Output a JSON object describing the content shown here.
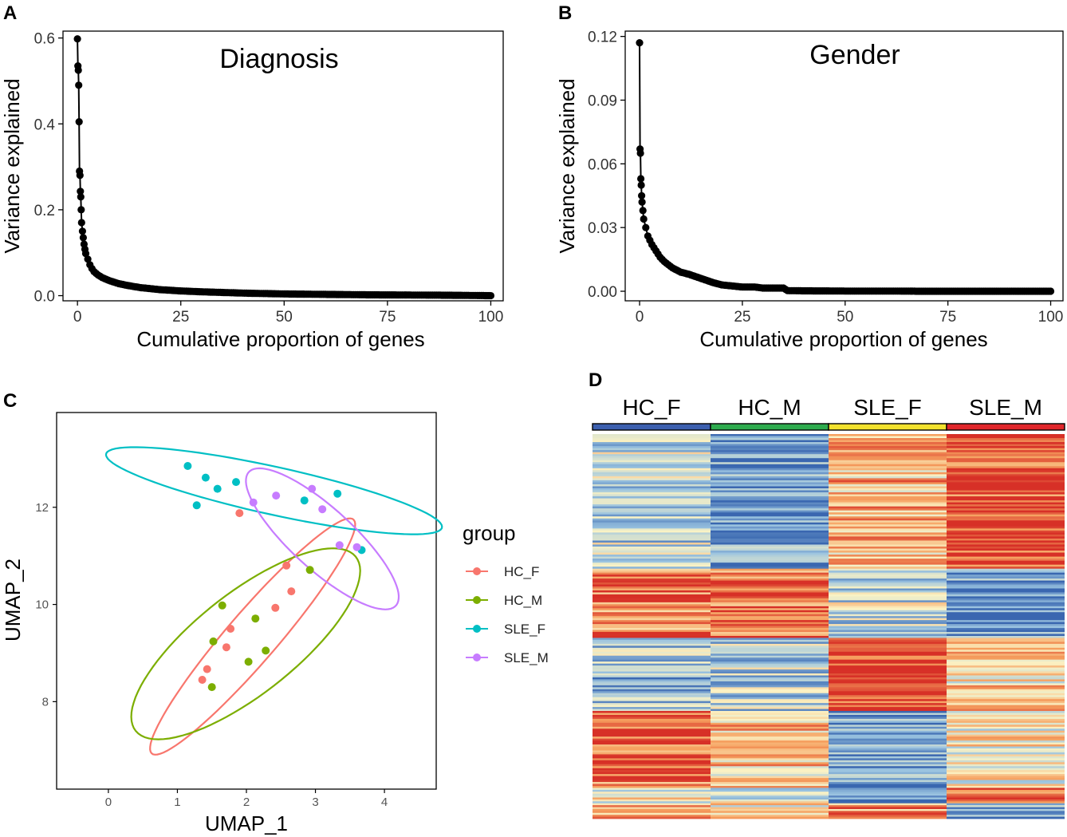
{
  "panels": {
    "a": {
      "letter": "A"
    },
    "b": {
      "letter": "B"
    },
    "c": {
      "letter": "C"
    },
    "d": {
      "letter": "D"
    }
  },
  "chart_data": [
    {
      "id": "A",
      "type": "line",
      "title": "Diagnosis",
      "xlabel": "Cumulative proportion of genes",
      "ylabel": "Variance explained",
      "xlim": [
        -3.5,
        103
      ],
      "ylim": [
        -0.012,
        0.616
      ],
      "xticks": [
        0,
        25,
        50,
        75,
        100
      ],
      "xtick_labels": [
        "0",
        "25",
        "50",
        "75",
        "100"
      ],
      "yticks": [
        0.0,
        0.2,
        0.4,
        0.6
      ],
      "ytick_labels": [
        "0.0",
        "0.2",
        "0.4",
        "0.6"
      ],
      "x": [
        0,
        0.1,
        0.2,
        0.3,
        0.4,
        0.5,
        0.6,
        0.7,
        0.8,
        0.9,
        1.0,
        1.2,
        1.4,
        1.6,
        1.8,
        2.0,
        2.5,
        3.0,
        3.5,
        4.0,
        5,
        6,
        7,
        8,
        10,
        12,
        15,
        20,
        25,
        30,
        40,
        50,
        60,
        70,
        80,
        90,
        100
      ],
      "y": [
        0.598,
        0.535,
        0.525,
        0.49,
        0.405,
        0.29,
        0.28,
        0.243,
        0.23,
        0.2,
        0.17,
        0.15,
        0.135,
        0.12,
        0.108,
        0.098,
        0.085,
        0.072,
        0.063,
        0.056,
        0.048,
        0.042,
        0.038,
        0.034,
        0.028,
        0.024,
        0.019,
        0.014,
        0.011,
        0.009,
        0.006,
        0.004,
        0.003,
        0.002,
        0.0015,
        0.001,
        0.0
      ]
    },
    {
      "id": "B",
      "type": "line",
      "title": "Gender",
      "xlabel": "Cumulative proportion of genes",
      "ylabel": "Variance explained",
      "xlim": [
        -3.5,
        103
      ],
      "ylim": [
        -0.0045,
        0.1225
      ],
      "xticks": [
        0,
        25,
        50,
        75,
        100
      ],
      "xtick_labels": [
        "0",
        "25",
        "50",
        "75",
        "100"
      ],
      "yticks": [
        0.0,
        0.03,
        0.06,
        0.09,
        0.12
      ],
      "ytick_labels": [
        "0.00",
        "0.03",
        "0.06",
        "0.09",
        "0.12"
      ],
      "x": [
        0,
        0.1,
        0.2,
        0.3,
        0.4,
        0.5,
        0.6,
        0.8,
        1.0,
        1.5,
        2,
        3,
        4,
        5,
        6,
        8,
        10,
        12,
        15,
        18,
        20,
        25,
        28,
        30,
        35,
        36,
        40,
        50,
        60,
        70,
        80,
        90,
        100
      ],
      "y": [
        0.117,
        0.067,
        0.065,
        0.053,
        0.05,
        0.045,
        0.042,
        0.038,
        0.034,
        0.03,
        0.026,
        0.022,
        0.019,
        0.016,
        0.014,
        0.011,
        0.009,
        0.008,
        0.006,
        0.004,
        0.003,
        0.002,
        0.002,
        0.0015,
        0.0015,
        0.0003,
        0.0002,
        0.0001,
        0.0001,
        0.0,
        0.0,
        0.0,
        0.0
      ]
    },
    {
      "id": "C",
      "type": "scatter",
      "xlabel": "UMAP_1",
      "ylabel": "UMAP_2",
      "xlim": [
        -0.75,
        4.75
      ],
      "ylim": [
        6.2,
        13.95
      ],
      "xticks": [
        0,
        1,
        2,
        3,
        4
      ],
      "xtick_labels": [
        "0",
        "1",
        "2",
        "3",
        "4"
      ],
      "yticks": [
        8,
        10,
        12
      ],
      "ytick_labels": [
        "8",
        "10",
        "12"
      ],
      "legend_title": "group",
      "legend_position": "right",
      "series": [
        {
          "name": "HC_F",
          "color": "#F8766D",
          "x": [
            1.36,
            1.43,
            1.71,
            1.77,
            1.9,
            2.42,
            2.58,
            2.65
          ],
          "y": [
            8.45,
            8.67,
            9.12,
            9.5,
            11.88,
            9.93,
            10.8,
            10.27
          ]
        },
        {
          "name": "HC_M",
          "color": "#7CAE00",
          "x": [
            1.5,
            1.52,
            1.65,
            2.03,
            2.13,
            2.28,
            2.92
          ],
          "y": [
            8.3,
            9.24,
            9.98,
            8.82,
            9.71,
            9.05,
            10.71
          ]
        },
        {
          "name": "SLE_F",
          "color": "#00BFC4",
          "x": [
            1.15,
            1.28,
            1.41,
            1.58,
            1.85,
            2.84,
            3.32,
            3.67
          ],
          "y": [
            12.85,
            12.04,
            12.61,
            12.38,
            12.52,
            12.14,
            12.28,
            11.12
          ]
        },
        {
          "name": "SLE_M",
          "color": "#C77CFF",
          "x": [
            2.1,
            2.43,
            2.95,
            3.1,
            3.35,
            3.6
          ],
          "y": [
            12.1,
            12.24,
            12.38,
            11.96,
            11.22,
            11.18
          ]
        }
      ],
      "ellipses": [
        {
          "group": "HC_F",
          "center": [
            2.09,
            9.34
          ],
          "semi_axes": [
            2.82,
            0.41
          ],
          "angle_deg": 59.2
        },
        {
          "group": "HC_M",
          "center": [
            1.99,
            9.19
          ],
          "semi_axes": [
            2.42,
            0.87
          ],
          "angle_deg": 51.3
        },
        {
          "group": "SLE_F",
          "center": [
            2.4,
            12.34
          ],
          "semi_axes": [
            2.55,
            0.48
          ],
          "angle_deg": -17.6
        },
        {
          "group": "SLE_M",
          "center": [
            3.1,
            11.35
          ],
          "semi_axes": [
            1.75,
            0.52
          ],
          "angle_deg": -54.2
        }
      ]
    },
    {
      "id": "D",
      "type": "heatmap",
      "columns": [
        "HC_F",
        "HC_M",
        "SLE_F",
        "SLE_M"
      ],
      "column_colors": [
        "#3C5FAE",
        "#2EAB4E",
        "#F2E22E",
        "#E0262B"
      ],
      "blocks": [
        {
          "fraction": 0.35,
          "levels": [
            -0.3,
            -0.75,
            0.35,
            0.9
          ]
        },
        {
          "fraction": 0.18,
          "levels": [
            0.65,
            0.7,
            -0.25,
            -0.8
          ]
        },
        {
          "fraction": 0.19,
          "levels": [
            -0.45,
            -0.3,
            0.9,
            0.15
          ]
        },
        {
          "fraction": 0.2,
          "levels": [
            0.75,
            0.25,
            -0.75,
            0.05
          ]
        },
        {
          "fraction": 0.04,
          "levels": [
            0.05,
            -0.2,
            -0.6,
            0.75
          ]
        },
        {
          "fraction": 0.04,
          "levels": [
            0.55,
            0.1,
            0.6,
            -0.5
          ]
        }
      ],
      "palette": [
        "#3A67B0",
        "#9AC3E0",
        "#FBF3C5",
        "#F6A05F",
        "#D73027"
      ]
    }
  ]
}
